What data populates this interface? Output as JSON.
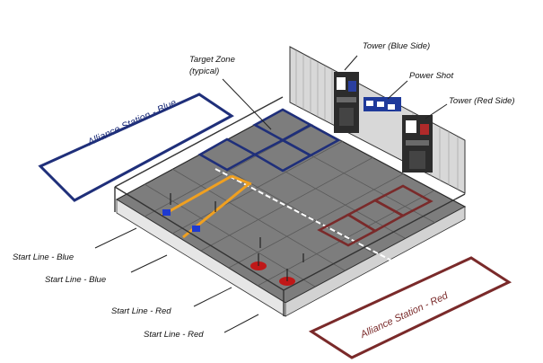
{
  "labels": {
    "target_zone_1": "Target Zone",
    "target_zone_2": "(typical)",
    "tower_blue": "Tower (Blue Side)",
    "power_shot": "Power Shot",
    "tower_red": "Tower (Red Side)",
    "start_line_1": "Start Line - Blue",
    "start_line_2": "Start Line - Blue",
    "start_line_3": "Start Line - Red",
    "start_line_4": "Start Line - Red",
    "alliance_blue": "Alliance Station - Blue",
    "alliance_red": "Alliance Station - Red"
  },
  "colors": {
    "blue": "#1f2f7a",
    "red": "#7a2a2a",
    "tile": "#7d7d7d",
    "tile_line": "#5a5a5a",
    "orange": "#f0a020"
  }
}
